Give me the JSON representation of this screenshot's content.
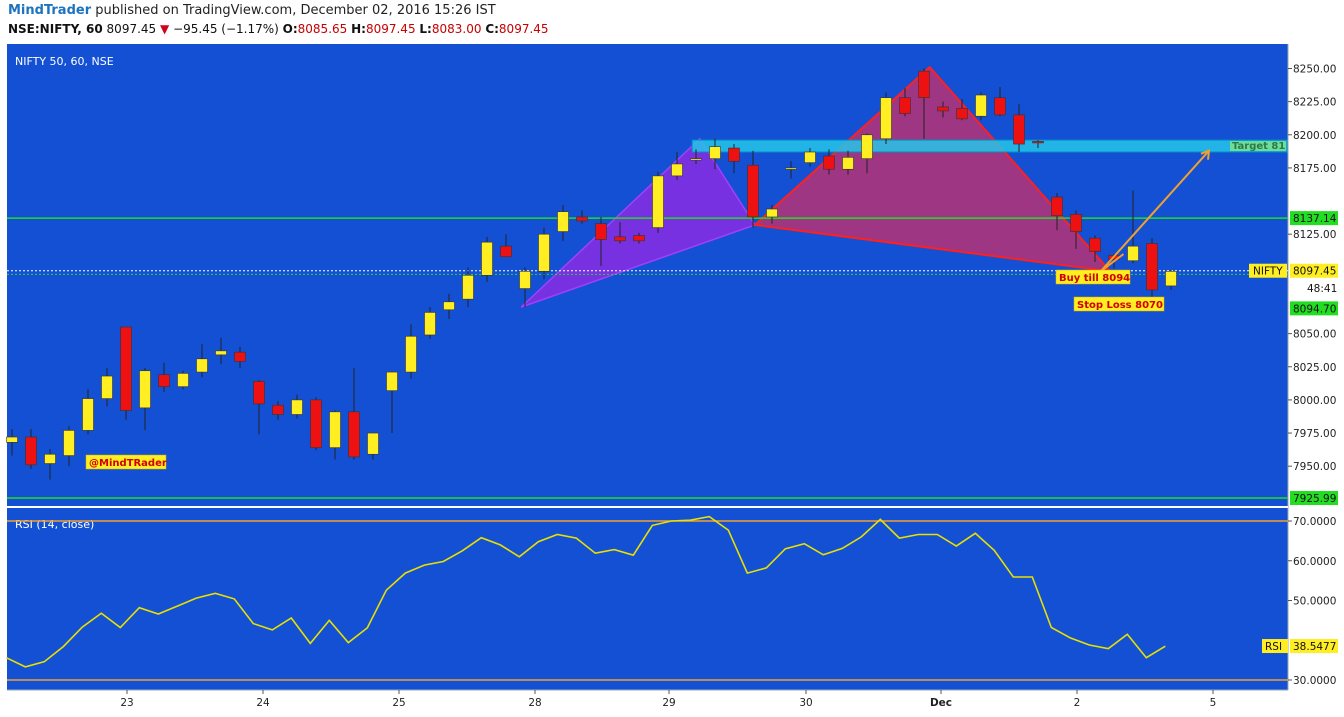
{
  "header": {
    "brand": "MindTrader",
    "published": "published on TradingView.com, December 02, 2016 15:26 IST",
    "symbol": "NSE:NIFTY, 60",
    "last": "8097.45",
    "arrow": "▼",
    "change": "−95.45 (−1.17%)",
    "o_label": "O:",
    "o_val": "8085.65",
    "h_label": "H:",
    "h_val": "8097.45",
    "l_label": "L:",
    "l_val": "8083.00",
    "c_label": "C:",
    "c_val": "8097.45"
  },
  "colors": {
    "background": "#1450d4",
    "up_candle": "#ffee22",
    "down_candle": "#ee1111",
    "rsi_line": "#e8e000",
    "green_line": "#22dd22",
    "orange": "#f0a030",
    "target_zone": "#26c6ea",
    "xabcd_left": "#8a2be2",
    "xabcd_right": "#c0306e"
  },
  "chart_data": [
    {
      "type": "candlestick",
      "title": "NIFTY 50, 60, NSE",
      "ylim": [
        7925,
        8265
      ],
      "y_ticks": [
        "8250.00",
        "8225.00",
        "8200.00",
        "8175.00",
        "8125.00",
        "8050.00",
        "8025.00",
        "8000.00",
        "7975.00",
        "7950.00"
      ],
      "x_ticks": [
        "23",
        "24",
        "25",
        "28",
        "29",
        "30",
        "Dec",
        "2",
        "5"
      ],
      "candles": [
        {
          "o": 7968,
          "h": 7978,
          "l": 7958,
          "c": 7972
        },
        {
          "o": 7972,
          "h": 7978,
          "l": 7948,
          "c": 7951
        },
        {
          "o": 7952,
          "h": 7963,
          "l": 7940,
          "c": 7959
        },
        {
          "o": 7958,
          "h": 7980,
          "l": 7950,
          "c": 7977
        },
        {
          "o": 7977,
          "h": 8008,
          "l": 7974,
          "c": 8001
        },
        {
          "o": 8001,
          "h": 8024,
          "l": 7995,
          "c": 8018
        },
        {
          "o": 8055,
          "h": 8055,
          "l": 7985,
          "c": 7992
        },
        {
          "o": 7994,
          "h": 8024,
          "l": 7977,
          "c": 8022
        },
        {
          "o": 8019,
          "h": 8028,
          "l": 8006,
          "c": 8010
        },
        {
          "o": 8010,
          "h": 8022,
          "l": 8008,
          "c": 8020
        },
        {
          "o": 8021,
          "h": 8042,
          "l": 8017,
          "c": 8031
        },
        {
          "o": 8034,
          "h": 8047,
          "l": 8027,
          "c": 8037
        },
        {
          "o": 8036,
          "h": 8040,
          "l": 8024,
          "c": 8029
        },
        {
          "o": 8014,
          "h": 8015,
          "l": 7974,
          "c": 7997
        },
        {
          "o": 7996,
          "h": 7999,
          "l": 7985,
          "c": 7989
        },
        {
          "o": 7989,
          "h": 8004,
          "l": 7986,
          "c": 8000
        },
        {
          "o": 8000,
          "h": 8002,
          "l": 7962,
          "c": 7964
        },
        {
          "o": 7964,
          "h": 7992,
          "l": 7955,
          "c": 7991
        },
        {
          "o": 7991,
          "h": 8024,
          "l": 7955,
          "c": 7957
        },
        {
          "o": 7959,
          "h": 7975,
          "l": 7955,
          "c": 7975
        },
        {
          "o": 8007,
          "h": 8021,
          "l": 7975,
          "c": 8021
        },
        {
          "o": 8021,
          "h": 8057,
          "l": 8016,
          "c": 8048
        },
        {
          "o": 8049,
          "h": 8070,
          "l": 8046,
          "c": 8066
        },
        {
          "o": 8068,
          "h": 8080,
          "l": 8061,
          "c": 8074
        },
        {
          "o": 8076,
          "h": 8100,
          "l": 8070,
          "c": 8094
        },
        {
          "o": 8094,
          "h": 8123,
          "l": 8089,
          "c": 8119
        },
        {
          "o": 8116,
          "h": 8125,
          "l": 8109,
          "c": 8108
        },
        {
          "o": 8084,
          "h": 8100,
          "l": 8070,
          "c": 8097
        },
        {
          "o": 8097,
          "h": 8130,
          "l": 8091,
          "c": 8125
        },
        {
          "o": 8127,
          "h": 8147,
          "l": 8120,
          "c": 8142
        },
        {
          "o": 8138,
          "h": 8143,
          "l": 8133,
          "c": 8135
        },
        {
          "o": 8133,
          "h": 8138,
          "l": 8101,
          "c": 8121
        },
        {
          "o": 8123,
          "h": 8134,
          "l": 8118,
          "c": 8120
        },
        {
          "o": 8124,
          "h": 8126,
          "l": 8118,
          "c": 8120
        },
        {
          "o": 8130,
          "h": 8172,
          "l": 8126,
          "c": 8169
        },
        {
          "o": 8169,
          "h": 8187,
          "l": 8166,
          "c": 8178
        },
        {
          "o": 8181,
          "h": 8189,
          "l": 8178,
          "c": 8182
        },
        {
          "o": 8182,
          "h": 8197,
          "l": 8174,
          "c": 8191
        },
        {
          "o": 8190,
          "h": 8193,
          "l": 8171,
          "c": 8180
        },
        {
          "o": 8177,
          "h": 8188,
          "l": 8130,
          "c": 8138
        },
        {
          "o": 8138,
          "h": 8147,
          "l": 8133,
          "c": 8144
        },
        {
          "o": 8174,
          "h": 8180,
          "l": 8167,
          "c": 8175
        },
        {
          "o": 8179,
          "h": 8190,
          "l": 8176,
          "c": 8187
        },
        {
          "o": 8184,
          "h": 8189,
          "l": 8170,
          "c": 8174
        },
        {
          "o": 8174,
          "h": 8188,
          "l": 8170,
          "c": 8183
        },
        {
          "o": 8182,
          "h": 8201,
          "l": 8171,
          "c": 8200
        },
        {
          "o": 8197,
          "h": 8232,
          "l": 8193,
          "c": 8228
        },
        {
          "o": 8228,
          "h": 8235,
          "l": 8214,
          "c": 8216
        },
        {
          "o": 8248,
          "h": 8250,
          "l": 8197,
          "c": 8228
        },
        {
          "o": 8221,
          "h": 8225,
          "l": 8213,
          "c": 8218
        },
        {
          "o": 8220,
          "h": 8227,
          "l": 8211,
          "c": 8212
        },
        {
          "o": 8214,
          "h": 8232,
          "l": 8211,
          "c": 8230
        },
        {
          "o": 8228,
          "h": 8236,
          "l": 8214,
          "c": 8215
        },
        {
          "o": 8215,
          "h": 8223,
          "l": 8187,
          "c": 8193
        },
        {
          "o": 8195,
          "h": 8196,
          "l": 8190,
          "c": 8194
        },
        {
          "o": 8153,
          "h": 8156,
          "l": 8128,
          "c": 8139
        },
        {
          "o": 8140,
          "h": 8143,
          "l": 8114,
          "c": 8127
        },
        {
          "o": 8122,
          "h": 8124,
          "l": 8104,
          "c": 8112
        },
        {
          "o": 8109,
          "h": 8110,
          "l": 8099,
          "c": 8106
        },
        {
          "o": 8105,
          "h": 8158,
          "l": 8103,
          "c": 8116
        },
        {
          "o": 8118,
          "h": 8122,
          "l": 8072,
          "c": 8083
        },
        {
          "o": 8086,
          "h": 8098,
          "l": 8083,
          "c": 8097
        }
      ],
      "levels": [
        {
          "label": "8137.14",
          "value": 8137.14
        },
        {
          "label": "7925.99",
          "value": 7925.99
        }
      ],
      "last_price_label": "NIFTY",
      "last_price": "8097.45",
      "countdown": "48:41",
      "buy_level": "8094.70",
      "target_zone": {
        "from": 8187,
        "to": 8196,
        "label": "Target 81"
      },
      "annotations": {
        "buy": "Buy till 8094",
        "stop": "Stop Loss 8070",
        "author": "@MindTRader"
      },
      "pattern_points": [
        {
          "bar": 26.8,
          "value": 8070
        },
        {
          "bar": 36.2,
          "value": 8197
        },
        {
          "bar": 39.1,
          "value": 8132
        },
        {
          "bar": 48.3,
          "value": 8251
        },
        {
          "bar": 57.8,
          "value": 8097
        }
      ]
    },
    {
      "type": "line",
      "title": "RSI (14, close)",
      "ylim": [
        28,
        72
      ],
      "y_ticks": [
        "70.0000",
        "60.0000",
        "50.0000",
        "30.0000"
      ],
      "levels": [
        70,
        30
      ],
      "last_label": "RSI",
      "last_value": "38.5477",
      "series": [
        {
          "values": [
            35.6,
            33.3,
            34.6,
            38.4,
            43.3,
            46.8,
            43.2,
            48.2,
            46.6,
            48.6,
            50.6,
            51.8,
            50.4,
            44.2,
            42.6,
            45.6,
            39.2,
            45.0,
            39.4,
            43.1,
            52.6,
            56.9,
            58.9,
            59.8,
            62.5,
            65.8,
            64.0,
            61.0,
            64.8,
            66.6,
            65.7,
            61.9,
            62.8,
            61.4,
            68.9,
            70.0,
            70.2,
            71.1,
            67.7,
            56.9,
            58.2,
            63.0,
            64.3,
            61.5,
            63.1,
            66.0,
            70.4,
            65.7,
            66.6,
            66.6,
            63.7,
            66.9,
            62.6,
            55.9,
            55.9,
            43.2,
            40.6,
            38.8,
            37.9,
            41.5,
            35.6,
            38.5
          ]
        }
      ]
    }
  ]
}
